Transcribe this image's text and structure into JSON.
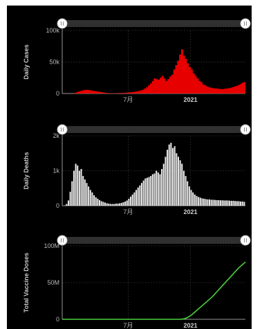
{
  "chart_data": [
    {
      "type": "area",
      "ylabel": "Daily Cases",
      "ylim": [
        0,
        100000
      ],
      "yticks": [
        {
          "v": 0,
          "label": "0"
        },
        {
          "v": 50000,
          "label": "50k"
        },
        {
          "v": 100000,
          "label": "100k"
        }
      ],
      "xticks": [
        {
          "t": 0.36,
          "label": "7月",
          "bold": false
        },
        {
          "t": 0.7,
          "label": "2021",
          "bold": true
        }
      ],
      "color": "#e60000",
      "stepped": true,
      "series": [
        {
          "values": [
            0,
            0,
            0,
            0,
            0,
            0,
            1000,
            2000,
            3000,
            4000,
            5000,
            5500,
            6000,
            5500,
            5000,
            4500,
            4000,
            3500,
            3000,
            2500,
            2000,
            1500,
            1000,
            800,
            600,
            500,
            500,
            600,
            700,
            800,
            900,
            1000,
            1200,
            1500,
            1800,
            2000,
            2500,
            3000,
            3500,
            4000,
            5000,
            6000,
            8000,
            10000,
            13000,
            16000,
            20000,
            24000,
            23000,
            22000,
            25000,
            28000,
            24000,
            20000,
            23000,
            27000,
            30000,
            38000,
            45000,
            52000,
            62000,
            70000,
            60000,
            55000,
            48000,
            42000,
            38000,
            32000,
            28000,
            24000,
            20000,
            18000,
            14000,
            13000,
            11000,
            10000,
            9000,
            8500,
            8000,
            8000,
            7500,
            7000,
            7000,
            7500,
            8000,
            8500,
            9000,
            10000,
            11000,
            12000,
            13500,
            15000,
            17000,
            18000
          ]
        }
      ]
    },
    {
      "type": "bar",
      "ylabel": "Daily Deaths",
      "ylim": [
        0,
        2000
      ],
      "yticks": [
        {
          "v": 0,
          "label": "0"
        },
        {
          "v": 1000,
          "label": "1k"
        },
        {
          "v": 2000,
          "label": "2k"
        }
      ],
      "xticks": [
        {
          "t": 0.36,
          "label": "7月",
          "bold": false
        },
        {
          "t": 0.7,
          "label": "2021",
          "bold": true
        }
      ],
      "color": "#e8e8e8",
      "series": [
        {
          "values": [
            0,
            10,
            50,
            150,
            400,
            700,
            1000,
            1200,
            1150,
            1000,
            1050,
            850,
            750,
            650,
            550,
            450,
            380,
            300,
            240,
            200,
            160,
            130,
            110,
            90,
            70,
            60,
            50,
            50,
            50,
            60,
            60,
            70,
            80,
            100,
            120,
            150,
            200,
            260,
            320,
            380,
            450,
            520,
            580,
            650,
            720,
            780,
            800,
            820,
            850,
            900,
            920,
            1000,
            950,
            900,
            1050,
            1200,
            1400,
            1600,
            1750,
            1800,
            1650,
            1700,
            1500,
            1400,
            1300,
            1200,
            1000,
            850,
            700,
            550,
            450,
            380,
            320,
            280,
            250,
            230,
            210,
            200,
            190,
            180,
            180,
            170,
            170,
            165,
            160,
            160,
            155,
            155,
            150,
            150,
            150,
            145,
            140,
            140,
            135,
            130,
            130,
            120,
            120,
            110
          ]
        }
      ]
    },
    {
      "type": "line",
      "ylabel": "Total Vaccine Doses",
      "ylim": [
        0,
        100000000
      ],
      "yticks": [
        {
          "v": 0,
          "label": "0"
        },
        {
          "v": 50000000,
          "label": "50M"
        },
        {
          "v": 100000000,
          "label": "100M"
        }
      ],
      "xticks": [
        {
          "t": 0.36,
          "label": "7月",
          "bold": false
        },
        {
          "t": 0.7,
          "label": "2021",
          "bold": true
        }
      ],
      "color": "#4bd23c",
      "series": [
        {
          "values": [
            0,
            0,
            0,
            0,
            0,
            0,
            0,
            0,
            0,
            0,
            0,
            0,
            0,
            0,
            0,
            0,
            0,
            0,
            0,
            0,
            0,
            0,
            0,
            0,
            0,
            0,
            0,
            0,
            0,
            0,
            0,
            0,
            0,
            0,
            0,
            0,
            0,
            0,
            0,
            0,
            0,
            0,
            0,
            0,
            0,
            0,
            0,
            0,
            0,
            0,
            0,
            0,
            0,
            0,
            0,
            0,
            0,
            0,
            0,
            0,
            0,
            0,
            0,
            0,
            0,
            0,
            0,
            0,
            0,
            0,
            0,
            200000,
            500000,
            1000000,
            2000000,
            3000000,
            4500000,
            6000000,
            8000000,
            10000000,
            12000000,
            14000000,
            16000000,
            18000000,
            20000000,
            22000000,
            24000000,
            26000000,
            28000000,
            30000000,
            32500000,
            35000000,
            37500000,
            40000000,
            42500000,
            45000000,
            47500000,
            50000000,
            52500000,
            55000000,
            57500000,
            60000000,
            62500000,
            65000000,
            67500000,
            70000000,
            72000000,
            74000000,
            76000000,
            78000000
          ]
        }
      ]
    }
  ]
}
